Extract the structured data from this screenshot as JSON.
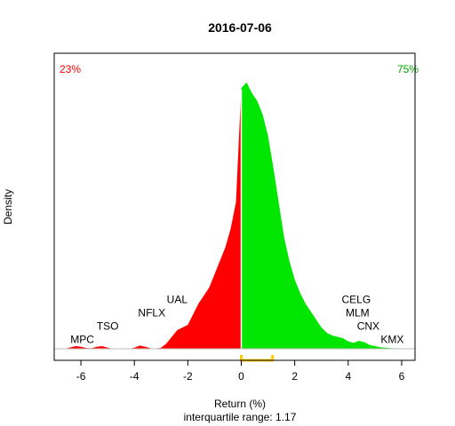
{
  "chart_data": {
    "type": "area",
    "title": "2016-07-06",
    "xlabel": "Return (%)",
    "ylabel": "Density",
    "subtitle": "interquartile range: 1.17",
    "xlim": [
      -7,
      6.5
    ],
    "ylim": [
      0,
      1.05
    ],
    "x_ticks": [
      -6,
      -4,
      -2,
      0,
      2,
      4,
      6
    ],
    "x_tick_labels": [
      "-6",
      "-4",
      "-2",
      "0",
      "2",
      "4",
      "6"
    ],
    "split_at": 0,
    "negative_share": "23%",
    "positive_share": "75%",
    "negative_color": "#ff0000",
    "positive_color": "#00e600",
    "iqr_color": "#ffcc00",
    "iqr_range": [
      0.0,
      1.17
    ],
    "density": {
      "x": [
        -6.6,
        -6.4,
        -6.2,
        -6.0,
        -5.8,
        -5.6,
        -5.4,
        -5.2,
        -5.0,
        -4.8,
        -4.6,
        -4.4,
        -4.2,
        -4.0,
        -3.8,
        -3.6,
        -3.4,
        -3.2,
        -3.0,
        -2.8,
        -2.6,
        -2.4,
        -2.2,
        -2.0,
        -1.8,
        -1.6,
        -1.4,
        -1.2,
        -1.0,
        -0.8,
        -0.6,
        -0.4,
        -0.2,
        0.0,
        0.2,
        0.4,
        0.6,
        0.8,
        1.0,
        1.2,
        1.4,
        1.6,
        1.8,
        2.0,
        2.2,
        2.4,
        2.6,
        2.8,
        3.0,
        3.2,
        3.4,
        3.6,
        3.8,
        4.0,
        4.2,
        4.4,
        4.6,
        4.8,
        5.0,
        5.2,
        5.4,
        5.6,
        5.8,
        6.0,
        6.2
      ],
      "y": [
        0.0,
        0.005,
        0.01,
        0.008,
        0.003,
        0.002,
        0.008,
        0.01,
        0.004,
        0.0,
        0.0,
        0.0,
        0.0,
        0.004,
        0.012,
        0.008,
        0.002,
        0.0,
        0.004,
        0.02,
        0.045,
        0.07,
        0.08,
        0.09,
        0.13,
        0.17,
        0.2,
        0.23,
        0.28,
        0.33,
        0.38,
        0.45,
        0.55,
        0.98,
        1.0,
        0.96,
        0.93,
        0.88,
        0.8,
        0.68,
        0.55,
        0.42,
        0.33,
        0.26,
        0.21,
        0.17,
        0.14,
        0.11,
        0.08,
        0.06,
        0.05,
        0.045,
        0.04,
        0.028,
        0.022,
        0.03,
        0.025,
        0.015,
        0.01,
        0.006,
        0.004,
        0.002,
        0.002,
        0.001,
        0.0
      ]
    },
    "annotations": [
      {
        "label": "MPC",
        "x": -5.95,
        "y": 0.035
      },
      {
        "label": "TSO",
        "x": -5.0,
        "y": 0.085
      },
      {
        "label": "NFLX",
        "x": -3.35,
        "y": 0.135
      },
      {
        "label": "UAL",
        "x": -2.4,
        "y": 0.185
      },
      {
        "label": "CELG",
        "x": 4.3,
        "y": 0.185
      },
      {
        "label": "MLM",
        "x": 4.35,
        "y": 0.135
      },
      {
        "label": "CNX",
        "x": 4.75,
        "y": 0.085
      },
      {
        "label": "KMX",
        "x": 5.65,
        "y": 0.035
      }
    ]
  }
}
